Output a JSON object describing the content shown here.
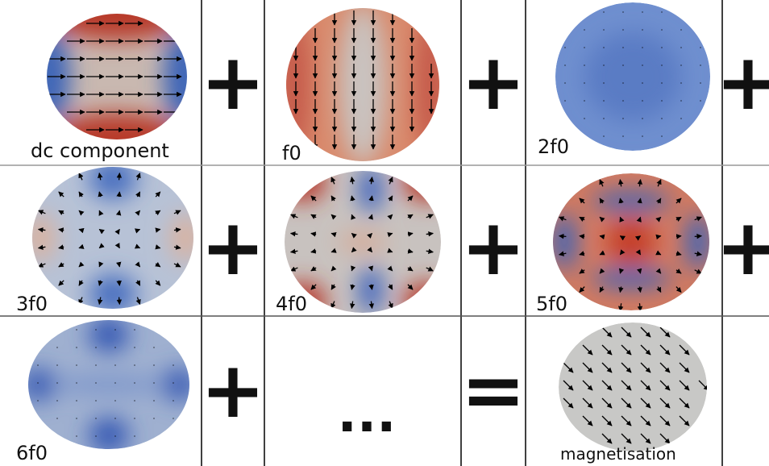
{
  "rows": [
    [
      {
        "label": "dc component",
        "operator": "+"
      },
      {
        "label": "f0",
        "operator": "+"
      },
      {
        "label": "2f0",
        "operator": "+"
      }
    ],
    [
      {
        "label": "3f0",
        "operator": "+"
      },
      {
        "label": "4f0",
        "operator": "+"
      },
      {
        "label": "5f0",
        "operator": "+"
      }
    ],
    [
      {
        "label": "6f0",
        "operator": "+"
      },
      {
        "label": "...",
        "operator": "="
      },
      {
        "label": "magnetisation"
      }
    ]
  ]
}
